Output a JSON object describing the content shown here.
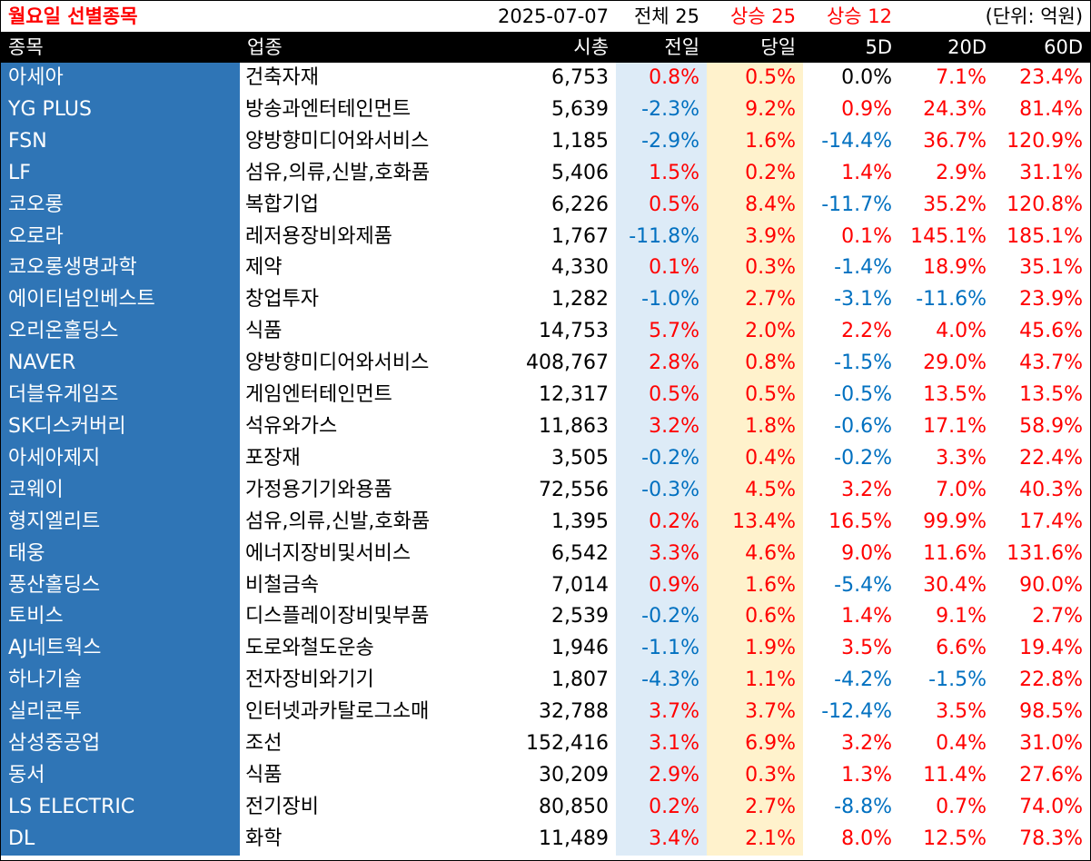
{
  "header": {
    "title": "월요일 선별종목",
    "date": "2025-07-07",
    "total": "전체 25",
    "rise_today": "상승 25",
    "rise_5d": "상승 12",
    "unit": "(단위: 억원)"
  },
  "columns": [
    "종목",
    "업종",
    "시총",
    "전일",
    "당일",
    "5D",
    "20D",
    "60D"
  ],
  "colors": {
    "name_bg": "#2f75b6",
    "prev_bg": "#ddebf7",
    "today_bg": "#fff2cc",
    "up": "#ff0000",
    "down": "#0070c0"
  },
  "rows": [
    {
      "name": "아세아",
      "industry": "건축자재",
      "cap": "6,753",
      "prev": "0.8%",
      "today": "0.5%",
      "d5": "0.0%",
      "d20": "7.1%",
      "d60": "23.4%"
    },
    {
      "name": "YG PLUS",
      "industry": "방송과엔터테인먼트",
      "cap": "5,639",
      "prev": "-2.3%",
      "today": "9.2%",
      "d5": "0.9%",
      "d20": "24.3%",
      "d60": "81.4%"
    },
    {
      "name": "FSN",
      "industry": "양방향미디어와서비스",
      "cap": "1,185",
      "prev": "-2.9%",
      "today": "1.6%",
      "d5": "-14.4%",
      "d20": "36.7%",
      "d60": "120.9%"
    },
    {
      "name": "LF",
      "industry": "섬유,의류,신발,호화품",
      "cap": "5,406",
      "prev": "1.5%",
      "today": "0.2%",
      "d5": "1.4%",
      "d20": "2.9%",
      "d60": "31.1%"
    },
    {
      "name": "코오롱",
      "industry": "복합기업",
      "cap": "6,226",
      "prev": "0.5%",
      "today": "8.4%",
      "d5": "-11.7%",
      "d20": "35.2%",
      "d60": "120.8%"
    },
    {
      "name": "오로라",
      "industry": "레저용장비와제품",
      "cap": "1,767",
      "prev": "-11.8%",
      "today": "3.9%",
      "d5": "0.1%",
      "d20": "145.1%",
      "d60": "185.1%"
    },
    {
      "name": "코오롱생명과학",
      "industry": "제약",
      "cap": "4,330",
      "prev": "0.1%",
      "today": "0.3%",
      "d5": "-1.4%",
      "d20": "18.9%",
      "d60": "35.1%"
    },
    {
      "name": "에이티넘인베스트",
      "industry": "창업투자",
      "cap": "1,282",
      "prev": "-1.0%",
      "today": "2.7%",
      "d5": "-3.1%",
      "d20": "-11.6%",
      "d60": "23.9%"
    },
    {
      "name": "오리온홀딩스",
      "industry": "식품",
      "cap": "14,753",
      "prev": "5.7%",
      "today": "2.0%",
      "d5": "2.2%",
      "d20": "4.0%",
      "d60": "45.6%"
    },
    {
      "name": "NAVER",
      "industry": "양방향미디어와서비스",
      "cap": "408,767",
      "prev": "2.8%",
      "today": "0.8%",
      "d5": "-1.5%",
      "d20": "29.0%",
      "d60": "43.7%"
    },
    {
      "name": "더블유게임즈",
      "industry": "게임엔터테인먼트",
      "cap": "12,317",
      "prev": "0.5%",
      "today": "0.5%",
      "d5": "-0.5%",
      "d20": "13.5%",
      "d60": "13.5%"
    },
    {
      "name": "SK디스커버리",
      "industry": "석유와가스",
      "cap": "11,863",
      "prev": "3.2%",
      "today": "1.8%",
      "d5": "-0.6%",
      "d20": "17.1%",
      "d60": "58.9%"
    },
    {
      "name": "아세아제지",
      "industry": "포장재",
      "cap": "3,505",
      "prev": "-0.2%",
      "today": "0.4%",
      "d5": "-0.2%",
      "d20": "3.3%",
      "d60": "22.4%"
    },
    {
      "name": "코웨이",
      "industry": "가정용기기와용품",
      "cap": "72,556",
      "prev": "-0.3%",
      "today": "4.5%",
      "d5": "3.2%",
      "d20": "7.0%",
      "d60": "40.3%"
    },
    {
      "name": "형지엘리트",
      "industry": "섬유,의류,신발,호화품",
      "cap": "1,395",
      "prev": "0.2%",
      "today": "13.4%",
      "d5": "16.5%",
      "d20": "99.9%",
      "d60": "17.4%"
    },
    {
      "name": "태웅",
      "industry": "에너지장비및서비스",
      "cap": "6,542",
      "prev": "3.3%",
      "today": "4.6%",
      "d5": "9.0%",
      "d20": "11.6%",
      "d60": "131.6%"
    },
    {
      "name": "풍산홀딩스",
      "industry": "비철금속",
      "cap": "7,014",
      "prev": "0.9%",
      "today": "1.6%",
      "d5": "-5.4%",
      "d20": "30.4%",
      "d60": "90.0%"
    },
    {
      "name": "토비스",
      "industry": "디스플레이장비및부품",
      "cap": "2,539",
      "prev": "-0.2%",
      "today": "0.6%",
      "d5": "1.4%",
      "d20": "9.1%",
      "d60": "2.7%"
    },
    {
      "name": "AJ네트웍스",
      "industry": "도로와철도운송",
      "cap": "1,946",
      "prev": "-1.1%",
      "today": "1.9%",
      "d5": "3.5%",
      "d20": "6.6%",
      "d60": "19.4%"
    },
    {
      "name": "하나기술",
      "industry": "전자장비와기기",
      "cap": "1,807",
      "prev": "-4.3%",
      "today": "1.1%",
      "d5": "-4.2%",
      "d20": "-1.5%",
      "d60": "22.8%"
    },
    {
      "name": "실리콘투",
      "industry": "인터넷과카탈로그소매",
      "cap": "32,788",
      "prev": "3.7%",
      "today": "3.7%",
      "d5": "-12.4%",
      "d20": "3.5%",
      "d60": "98.5%"
    },
    {
      "name": "삼성중공업",
      "industry": "조선",
      "cap": "152,416",
      "prev": "3.1%",
      "today": "6.9%",
      "d5": "3.2%",
      "d20": "0.4%",
      "d60": "31.0%"
    },
    {
      "name": "동서",
      "industry": "식품",
      "cap": "30,209",
      "prev": "2.9%",
      "today": "0.3%",
      "d5": "1.3%",
      "d20": "11.4%",
      "d60": "27.6%"
    },
    {
      "name": "LS ELECTRIC",
      "industry": "전기장비",
      "cap": "80,850",
      "prev": "0.2%",
      "today": "2.7%",
      "d5": "-8.8%",
      "d20": "0.7%",
      "d60": "74.0%"
    },
    {
      "name": "DL",
      "industry": "화학",
      "cap": "11,489",
      "prev": "3.4%",
      "today": "2.1%",
      "d5": "8.0%",
      "d20": "12.5%",
      "d60": "78.3%"
    }
  ]
}
